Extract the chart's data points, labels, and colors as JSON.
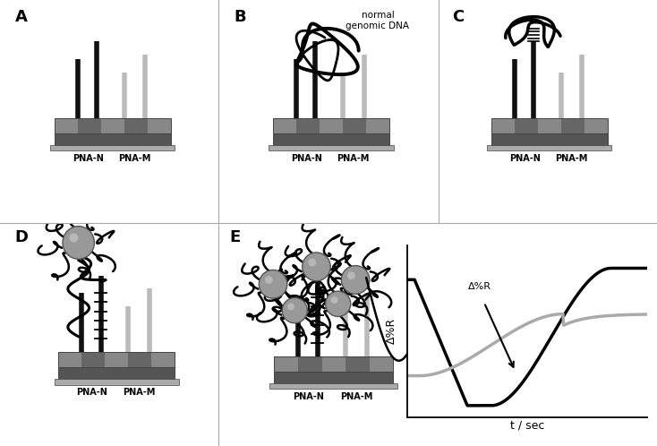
{
  "panel_labels": [
    "A",
    "B",
    "C",
    "D",
    "E"
  ],
  "label_fontsize": 13,
  "background_color": "#ffffff",
  "pna_n_color": "#111111",
  "pna_m_color": "#bbbbbb",
  "chip_top_colors": [
    "#888888",
    "#666666",
    "#888888",
    "#666666",
    "#888888"
  ],
  "chip_side_color": "#555555",
  "chip_border_color": "#444444",
  "graph_black_line": "#000000",
  "graph_gray_line": "#aaaaaa",
  "divider_color": "#aaaaaa",
  "nano_fill": "#999999",
  "nano_edge": "#555555"
}
